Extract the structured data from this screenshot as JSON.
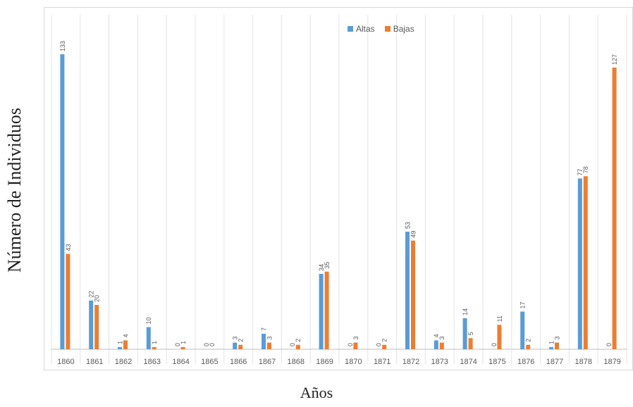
{
  "chart_data": {
    "type": "bar",
    "xlabel": "Años",
    "ylabel": "Número de Individuos",
    "categories": [
      "1860",
      "1861",
      "1862",
      "1863",
      "1864",
      "1865",
      "1866",
      "1867",
      "1868",
      "1869",
      "1870",
      "1871",
      "1872",
      "1873",
      "1874",
      "1875",
      "1876",
      "1877",
      "1878",
      "1879"
    ],
    "series": [
      {
        "name": "Altas",
        "color": "#5b9bd5",
        "values": [
          133,
          22,
          1,
          10,
          0,
          0,
          3,
          7,
          0,
          34,
          0,
          0,
          53,
          4,
          14,
          0,
          17,
          1,
          77,
          0
        ]
      },
      {
        "name": "Bajas",
        "color": "#ed7d31",
        "values": [
          43,
          20,
          4,
          1,
          1,
          0,
          2,
          3,
          2,
          35,
          3,
          2,
          49,
          3,
          5,
          11,
          2,
          3,
          78,
          127
        ]
      }
    ],
    "ylim": [
      0,
      140
    ],
    "grid": "vertical",
    "legend": "top-center"
  }
}
